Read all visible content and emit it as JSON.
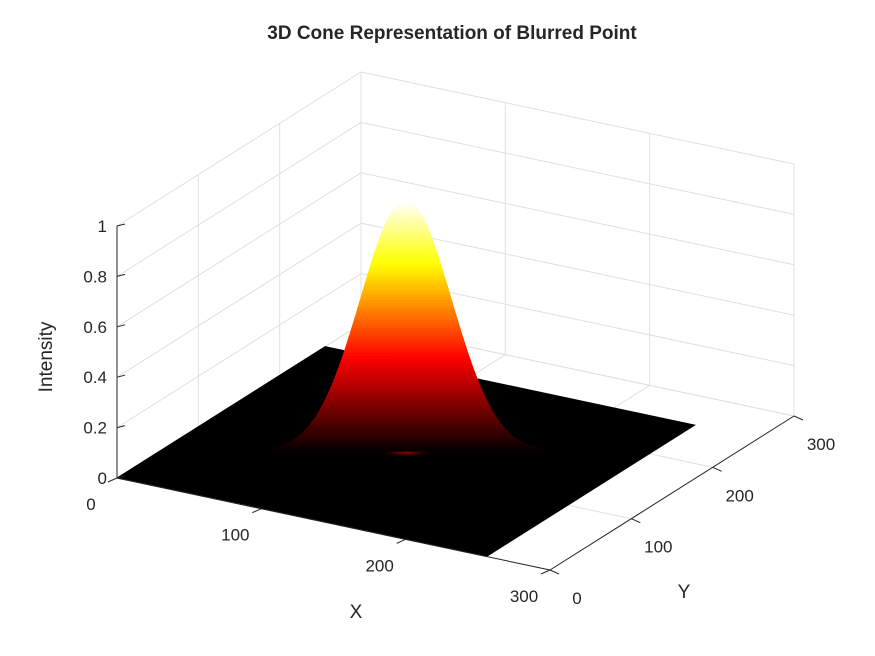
{
  "chart_data": {
    "type": "surface",
    "title": "3D Cone Representation of Blurred Point",
    "xlabel": "X",
    "ylabel": "Y",
    "zlabel": "Intensity",
    "xlim": [
      0,
      300
    ],
    "ylim": [
      0,
      300
    ],
    "zlim": [
      0,
      1
    ],
    "x_ticks": [
      0,
      100,
      200,
      300
    ],
    "y_ticks": [
      0,
      100,
      200,
      300
    ],
    "z_ticks": [
      0,
      0.2,
      0.4,
      0.6,
      0.8,
      1
    ],
    "x_tick_labels": [
      "0",
      "100",
      "200",
      "300"
    ],
    "y_tick_labels": [
      "0",
      "100",
      "200",
      "300"
    ],
    "z_tick_labels": [
      "0",
      "0.2",
      "0.4",
      "0.6",
      "0.8",
      "1"
    ],
    "grid": true,
    "colormap": "hot",
    "surface_extent": [
      0,
      256
    ],
    "peak": {
      "x": 128,
      "y": 128,
      "z": 1,
      "sigma": 20
    },
    "background_color": "#000000"
  }
}
